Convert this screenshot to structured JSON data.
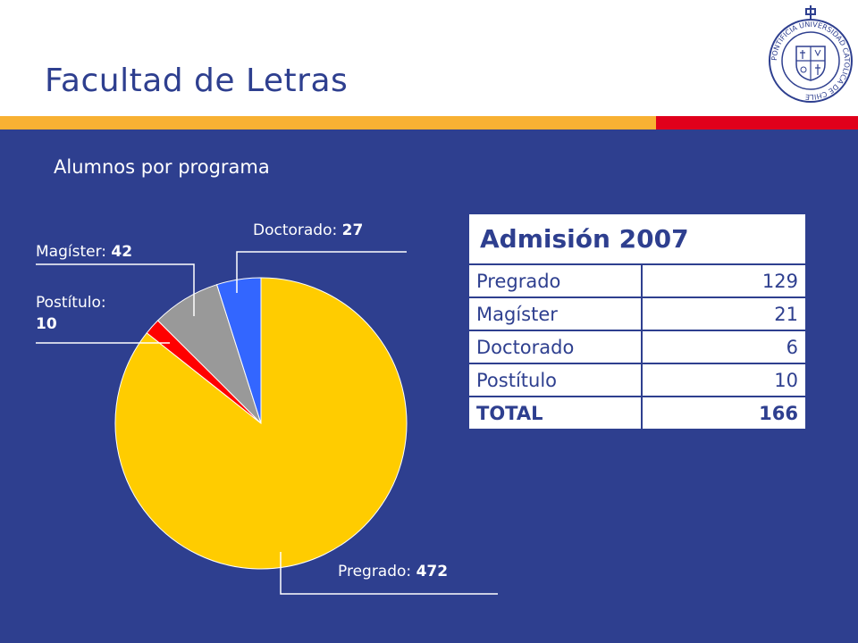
{
  "header": {
    "title": "Facultad de Letras"
  },
  "seal": {
    "ring_text": "PONTIFICIA UNIVERSIDAD CATOLICA DE CHILE",
    "colors": {
      "ink": "#2E3F8F"
    }
  },
  "colors": {
    "brand_blue": "#2E3F8F",
    "stripe_yellow": "#F8B133",
    "stripe_red": "#E0001B"
  },
  "subtitle": "Alumnos por programa",
  "chart_data": {
    "type": "pie",
    "title": "",
    "slices": [
      {
        "name": "Pregrado",
        "value": 472,
        "color": "#FFCC00"
      },
      {
        "name": "Postítulo",
        "value": 10,
        "color": "#FF0000"
      },
      {
        "name": "Magíster",
        "value": 42,
        "color": "#999999"
      },
      {
        "name": "Doctorado",
        "value": 27,
        "color": "#3366FF"
      }
    ],
    "labels": [
      {
        "name": "Doctorado:",
        "value": "27"
      },
      {
        "name": "Magíster:",
        "value": "42"
      },
      {
        "name": "Postítulo:",
        "value": "10"
      },
      {
        "name": "Pregrado:",
        "value": "472"
      }
    ]
  },
  "table": {
    "title": "Admisión 2007",
    "rows": [
      {
        "label": "Pregrado",
        "value": "129"
      },
      {
        "label": "Magíster",
        "value": "21"
      },
      {
        "label": "Doctorado",
        "value": "6"
      },
      {
        "label": "Postítulo",
        "value": "10"
      }
    ],
    "total": {
      "label": "TOTAL",
      "value": "166"
    }
  }
}
